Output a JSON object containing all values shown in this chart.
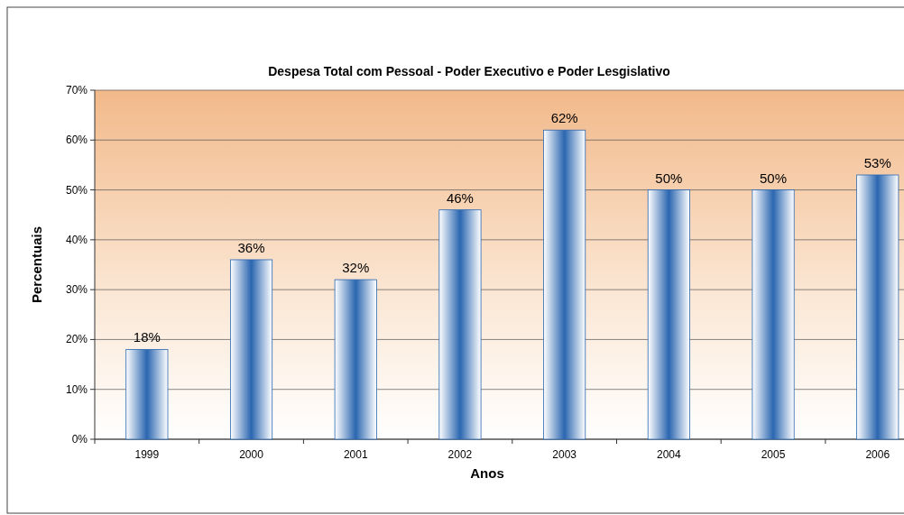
{
  "chart_data": {
    "type": "bar",
    "title": "Despesa Total com Pessoal - Poder Executivo e Poder Lesgislativo",
    "xlabel": "Anos",
    "ylabel": "Percentuais",
    "categories": [
      "1999",
      "2000",
      "2001",
      "2002",
      "2003",
      "2004",
      "2005",
      "2006"
    ],
    "values": [
      18,
      36,
      32,
      46,
      62,
      50,
      50,
      53
    ],
    "value_labels": [
      "18%",
      "36%",
      "32%",
      "46%",
      "62%",
      "50%",
      "50%",
      "53%"
    ],
    "color": "#2a66b0",
    "ylim": [
      0,
      70
    ],
    "yticks": [
      {
        "value": 0,
        "label": "0%"
      },
      {
        "value": 10,
        "label": "10%"
      },
      {
        "value": 20,
        "label": "20%"
      },
      {
        "value": 30,
        "label": "30%"
      },
      {
        "value": 40,
        "label": "40%"
      },
      {
        "value": 50,
        "label": "50%"
      },
      {
        "value": 60,
        "label": "60%"
      },
      {
        "value": 70,
        "label": "70%"
      }
    ],
    "grid": "y"
  }
}
